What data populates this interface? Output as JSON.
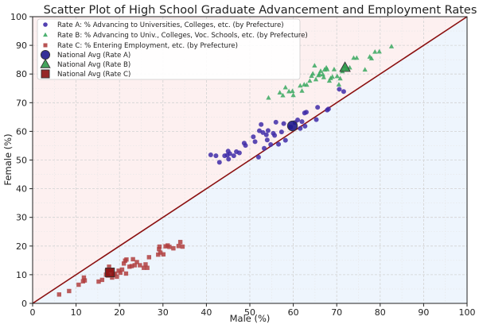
{
  "chart_data": {
    "type": "scatter",
    "title": "Scatter Plot of High School Graduate Advancement and Employment Rates",
    "xlabel": "Male (%)",
    "ylabel": "Female (%)",
    "xlim": [
      0,
      100
    ],
    "ylim": [
      0,
      100
    ],
    "xticks": [
      "0",
      "10",
      "20",
      "30",
      "40",
      "50",
      "60",
      "70",
      "80",
      "90",
      "100"
    ],
    "yticks": [
      "0",
      "10",
      "20",
      "30",
      "40",
      "50",
      "60",
      "70",
      "80",
      "90",
      "100"
    ],
    "grid": true,
    "legend_position": "top-left",
    "reference_line": {
      "x": [
        0,
        100
      ],
      "y": [
        0,
        100
      ],
      "color": "#8b1010"
    },
    "regions": {
      "above_diagonal_color": "#fdf0f0",
      "below_diagonal_color": "#eef5fd"
    },
    "series": [
      {
        "name": "Rate A: % Advancing to Universities, Colleges, etc. (by Prefecture)",
        "marker": "circle",
        "color": "#3f2ba8",
        "points": [
          [
            41.0,
            51.8
          ],
          [
            42.2,
            51.5
          ],
          [
            43.0,
            49.2
          ],
          [
            44.2,
            51.5
          ],
          [
            44.8,
            51.7
          ],
          [
            45.0,
            53.1
          ],
          [
            45.1,
            50.3
          ],
          [
            45.4,
            52.2
          ],
          [
            46.3,
            51.5
          ],
          [
            46.9,
            52.9
          ],
          [
            47.6,
            52.5
          ],
          [
            48.7,
            55.9
          ],
          [
            49.0,
            55.1
          ],
          [
            50.8,
            58.1
          ],
          [
            51.2,
            56.4
          ],
          [
            52.0,
            51.0
          ],
          [
            52.2,
            60.2
          ],
          [
            52.6,
            62.4
          ],
          [
            53.0,
            59.6
          ],
          [
            53.3,
            54.1
          ],
          [
            54.0,
            57.0
          ],
          [
            54.2,
            60.3
          ],
          [
            54.8,
            55.4
          ],
          [
            55.4,
            59.3
          ],
          [
            55.7,
            58.6
          ],
          [
            56.0,
            63.2
          ],
          [
            56.6,
            55.5
          ],
          [
            57.3,
            59.8
          ],
          [
            57.8,
            62.7
          ],
          [
            58.2,
            56.9
          ],
          [
            59.4,
            61.5
          ],
          [
            60.4,
            63.1
          ],
          [
            61.6,
            61.0
          ],
          [
            62.0,
            63.4
          ],
          [
            62.6,
            66.4
          ],
          [
            62.7,
            61.8
          ],
          [
            63.0,
            66.7
          ],
          [
            65.3,
            64.1
          ],
          [
            65.6,
            68.4
          ],
          [
            67.8,
            67.4
          ],
          [
            68.1,
            67.8
          ],
          [
            70.6,
            74.7
          ],
          [
            71.6,
            73.9
          ],
          [
            61.0,
            64.0
          ],
          [
            53.8,
            58.8
          ]
        ]
      },
      {
        "name": "Rate B: % Advancing to Univ., Colleges, Voc. Schools, etc. (by Prefecture)",
        "marker": "triangle",
        "color": "#3aa860",
        "points": [
          [
            54.3,
            71.7
          ],
          [
            56.9,
            73.5
          ],
          [
            57.6,
            72.5
          ],
          [
            58.2,
            75.3
          ],
          [
            59.0,
            73.9
          ],
          [
            59.8,
            74.0
          ],
          [
            60.0,
            72.6
          ],
          [
            61.6,
            75.9
          ],
          [
            62.0,
            74.1
          ],
          [
            62.5,
            76.3
          ],
          [
            63.1,
            76.2
          ],
          [
            63.8,
            77.6
          ],
          [
            64.2,
            79.3
          ],
          [
            64.5,
            80.1
          ],
          [
            64.9,
            82.9
          ],
          [
            65.2,
            78.1
          ],
          [
            65.8,
            79.5
          ],
          [
            66.0,
            80.0
          ],
          [
            66.3,
            81.0
          ],
          [
            66.8,
            79.8
          ],
          [
            67.2,
            81.5
          ],
          [
            67.6,
            82.2
          ],
          [
            67.8,
            81.6
          ],
          [
            68.3,
            77.6
          ],
          [
            68.6,
            78.5
          ],
          [
            69.0,
            79.0
          ],
          [
            69.4,
            81.6
          ],
          [
            70.1,
            79.2
          ],
          [
            70.5,
            76.3
          ],
          [
            70.8,
            78.4
          ],
          [
            71.3,
            80.9
          ],
          [
            71.8,
            82.7
          ],
          [
            72.4,
            81.9
          ],
          [
            73.0,
            82.2
          ],
          [
            73.9,
            85.6
          ],
          [
            74.6,
            85.6
          ],
          [
            76.5,
            81.5
          ],
          [
            77.6,
            86.0
          ],
          [
            78.0,
            85.4
          ],
          [
            78.8,
            87.7
          ],
          [
            79.8,
            87.8
          ],
          [
            82.6,
            89.6
          ],
          [
            67.0,
            78.8
          ]
        ]
      },
      {
        "name": "Rate C: % Entering Employment, etc. (by Prefecture)",
        "marker": "square",
        "color": "#b04040",
        "points": [
          [
            6.1,
            3.1
          ],
          [
            8.4,
            4.3
          ],
          [
            10.6,
            6.5
          ],
          [
            11.6,
            7.7
          ],
          [
            11.8,
            9.0
          ],
          [
            12.0,
            8.0
          ],
          [
            15.2,
            7.6
          ],
          [
            16.0,
            8.2
          ],
          [
            16.9,
            10.0
          ],
          [
            17.1,
            11.3
          ],
          [
            17.3,
            9.7
          ],
          [
            17.6,
            12.8
          ],
          [
            18.0,
            11.6
          ],
          [
            18.3,
            9.0
          ],
          [
            18.7,
            10.0
          ],
          [
            19.0,
            10.4
          ],
          [
            19.4,
            9.3
          ],
          [
            19.8,
            11.4
          ],
          [
            20.2,
            10.7
          ],
          [
            20.6,
            11.8
          ],
          [
            21.0,
            13.9
          ],
          [
            21.3,
            14.9
          ],
          [
            21.5,
            10.4
          ],
          [
            21.6,
            15.3
          ],
          [
            22.3,
            12.8
          ],
          [
            22.8,
            13.0
          ],
          [
            23.1,
            15.4
          ],
          [
            23.5,
            13.3
          ],
          [
            24.0,
            14.4
          ],
          [
            24.7,
            13.3
          ],
          [
            25.6,
            12.4
          ],
          [
            26.0,
            13.6
          ],
          [
            26.4,
            12.4
          ],
          [
            26.8,
            16.1
          ],
          [
            28.9,
            17.0
          ],
          [
            29.1,
            18.9
          ],
          [
            29.2,
            19.8
          ],
          [
            29.4,
            17.7
          ],
          [
            30.1,
            17.1
          ],
          [
            30.6,
            19.9
          ],
          [
            31.1,
            20.2
          ],
          [
            31.5,
            19.7
          ],
          [
            32.4,
            19.2
          ],
          [
            33.6,
            20.0
          ],
          [
            34.0,
            21.4
          ],
          [
            34.5,
            19.8
          ]
        ]
      }
    ],
    "national_avg": [
      {
        "name": "National Avg (Rate A)",
        "marker": "circle",
        "color": "#1f1a8c",
        "x": 59.8,
        "y": 61.9
      },
      {
        "name": "National Avg (Rate B)",
        "marker": "triangle",
        "color": "#2f9a4a",
        "x": 71.9,
        "y": 82.2
      },
      {
        "name": "National Avg (Rate C)",
        "marker": "square",
        "color": "#8b1010",
        "x": 17.8,
        "y": 10.8
      }
    ]
  }
}
